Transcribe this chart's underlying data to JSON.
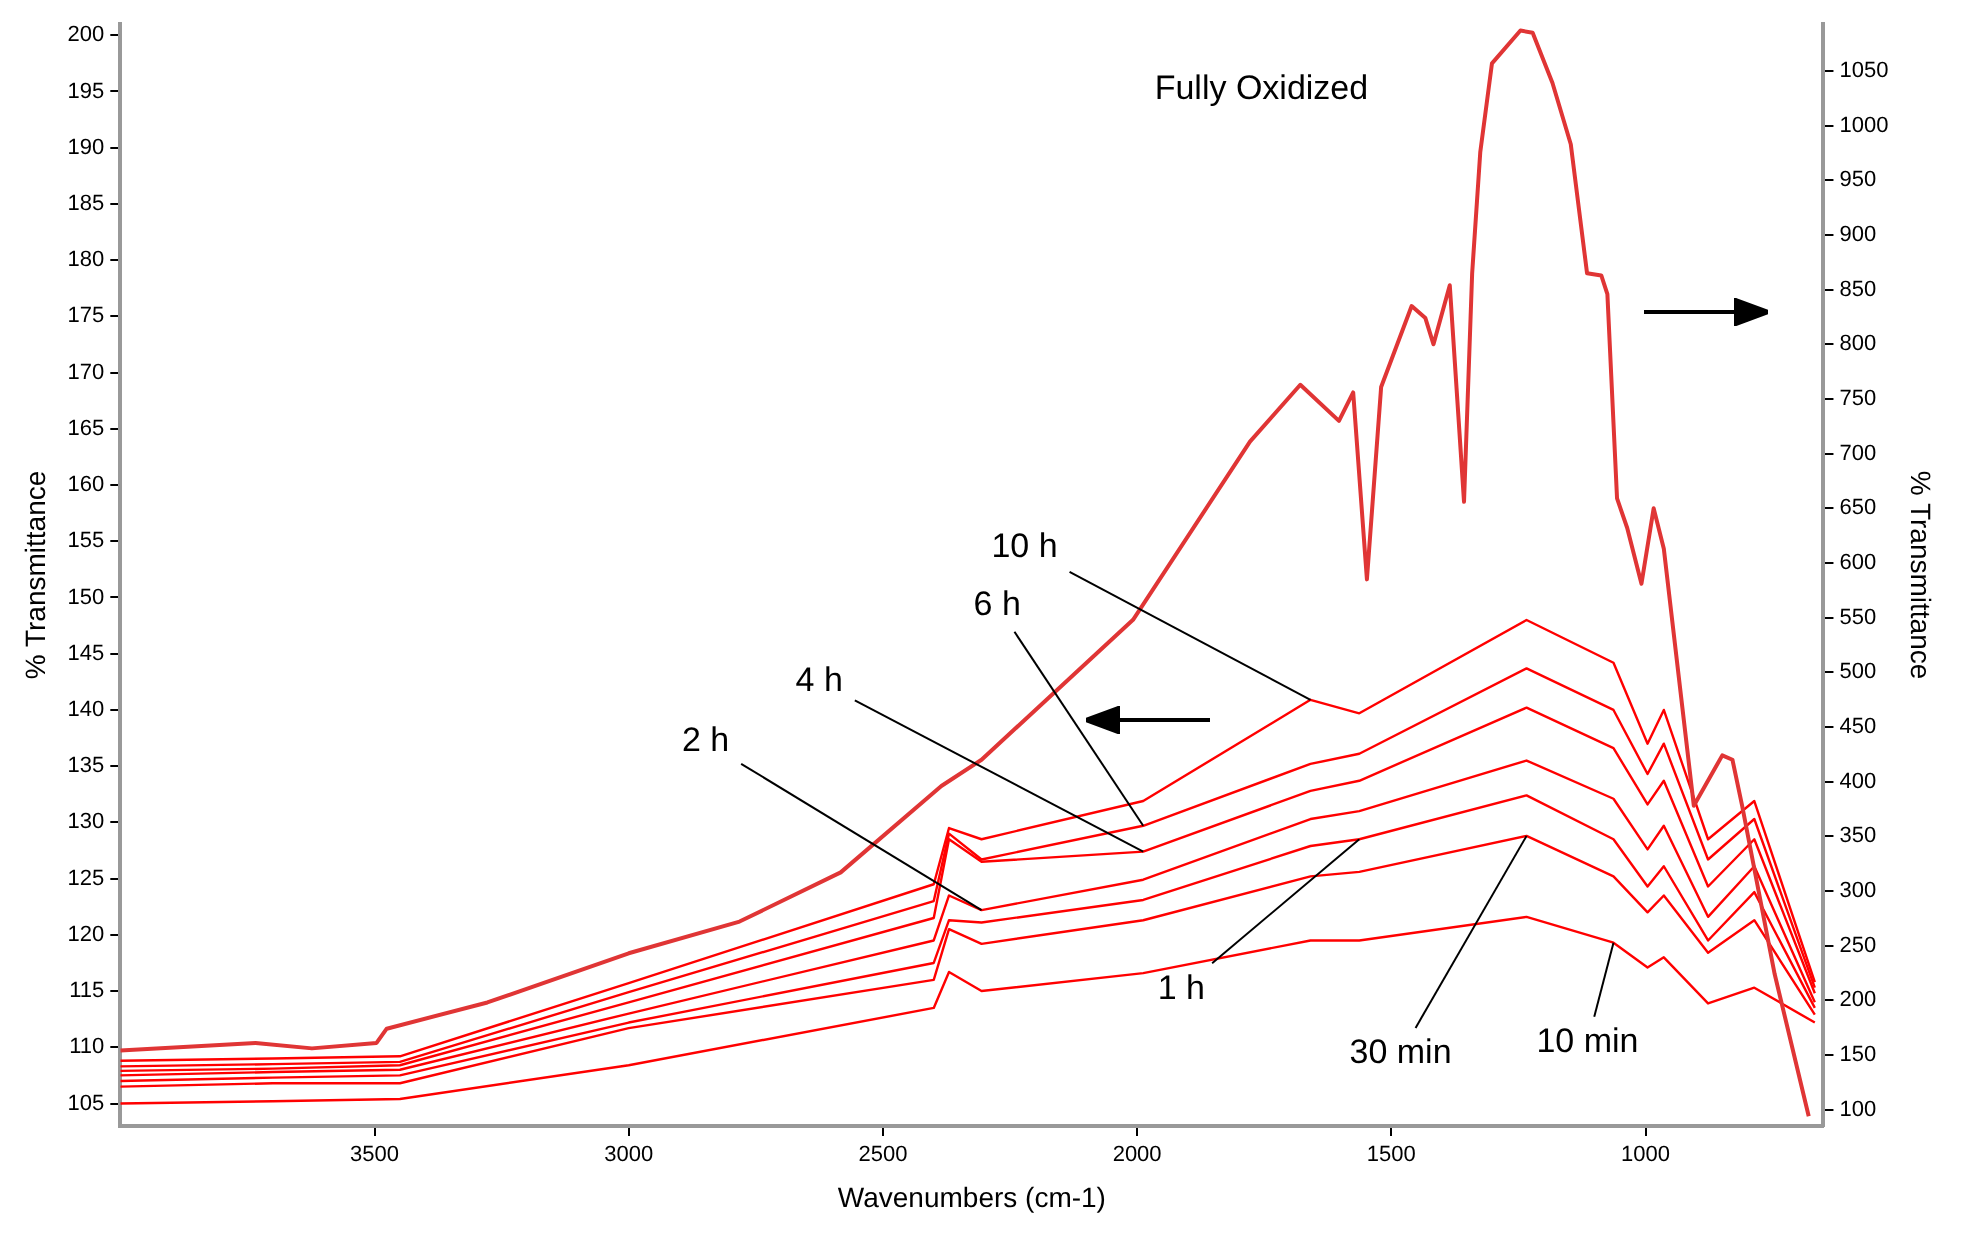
{
  "chart_data": {
    "type": "line",
    "xlabel": "Wavenumbers (cm-1)",
    "ylabel": "% Transmittance",
    "y2label": "% Transmittance",
    "xlim": [
      4000,
      650
    ],
    "xticks": [
      3500,
      3000,
      2500,
      2000,
      1500,
      1000
    ],
    "ylim": [
      103,
      201
    ],
    "yticks": [
      105,
      110,
      115,
      120,
      125,
      130,
      135,
      140,
      145,
      150,
      155,
      160,
      165,
      170,
      175,
      180,
      185,
      190,
      195,
      200
    ],
    "y2lim": [
      85,
      1093
    ],
    "y2ticks": [
      100,
      150,
      200,
      250,
      300,
      350,
      400,
      450,
      500,
      550,
      600,
      650,
      700,
      750,
      800,
      850,
      900,
      950,
      1000,
      1050
    ],
    "annotations": [
      "Fully Oxidized",
      {
        "text": "10 h",
        "x": 1659,
        "y": 140.9
      },
      {
        "text": "6 h",
        "x": 1988,
        "y": 129.7
      },
      {
        "text": "4 h",
        "x": 1988,
        "y": 127.4
      },
      {
        "text": "2 h",
        "x": 2306,
        "y": 122.2
      },
      {
        "text": "1 h",
        "x": 1563,
        "y": 128.5
      },
      {
        "text": "30 min",
        "x": 1234,
        "y": 128.8
      },
      {
        "text": "10 min",
        "x": 1063,
        "y": 119.3
      }
    ],
    "grid": false,
    "legend": false,
    "marker": "none",
    "line_style": "solid",
    "series": [
      {
        "color": "#e03535",
        "axis": "y2",
        "x": [
          4000,
          3734,
          3623,
          3496,
          3476,
          3278,
          3000,
          2782,
          2583,
          2385,
          2306,
          2008,
          1778,
          1679,
          1603,
          1575,
          1548,
          1520,
          1460,
          1433,
          1417,
          1385,
          1357,
          1341,
          1325,
          1302,
          1246,
          1222,
          1183,
          1147,
          1115,
          1087,
          1075,
          1056,
          1036,
          1008,
          984,
          964,
          905,
          849,
          829,
          810,
          746,
          679
        ],
        "values": [
          154,
          161,
          156,
          161,
          174,
          198,
          243,
          272,
          317,
          396,
          420,
          548,
          711,
          763,
          730,
          756,
          585,
          761,
          835,
          824,
          800,
          854,
          656,
          865,
          976,
          1057,
          1087,
          1085,
          1039,
          983,
          865,
          863,
          846,
          659,
          632,
          581,
          650,
          613,
          378,
          424,
          420,
          378,
          224,
          94
        ]
      },
      {
        "color": "#ff0000",
        "x": [
          4000,
          3700,
          3450,
          3000,
          2400,
          2370,
          2306,
          1988,
          1659,
          1563,
          1234,
          1063,
          996,
          964,
          877,
          786,
          667
        ],
        "values": [
          108.8,
          109.0,
          109.2,
          115.7,
          124.5,
          129.5,
          128.5,
          131.9,
          140.9,
          139.7,
          148.0,
          144.2,
          137.0,
          140.0,
          128.5,
          131.9,
          115.8
        ]
      },
      {
        "color": "#ff0000",
        "x": [
          4000,
          3700,
          3450,
          3000,
          2400,
          2370,
          2306,
          1988,
          1659,
          1563,
          1234,
          1063,
          996,
          964,
          877,
          786,
          667
        ],
        "values": [
          108.3,
          108.5,
          108.7,
          114.9,
          123.0,
          129.0,
          126.7,
          129.7,
          135.2,
          136.1,
          143.7,
          140.0,
          134.3,
          137.0,
          126.7,
          130.3,
          115.3
        ]
      },
      {
        "color": "#ff0000",
        "x": [
          4000,
          3700,
          3450,
          3000,
          2400,
          2370,
          2306,
          1988,
          1659,
          1563,
          1234,
          1063,
          996,
          964,
          877,
          786,
          667
        ],
        "values": [
          107.9,
          108.1,
          108.4,
          114.0,
          121.5,
          128.5,
          126.5,
          127.4,
          132.8,
          133.7,
          140.2,
          136.6,
          131.6,
          133.7,
          124.3,
          128.5,
          114.8
        ]
      },
      {
        "color": "#ff0000",
        "x": [
          4000,
          3700,
          3450,
          3000,
          2400,
          2370,
          2306,
          1988,
          1659,
          1563,
          1234,
          1063,
          996,
          964,
          877,
          786,
          667
        ],
        "values": [
          107.5,
          107.8,
          108.0,
          113.0,
          119.5,
          123.5,
          122.2,
          124.9,
          130.3,
          131.0,
          135.5,
          132.1,
          127.6,
          129.7,
          121.6,
          126.1,
          114.0
        ]
      },
      {
        "color": "#ff0000",
        "x": [
          4000,
          3700,
          3450,
          3000,
          2400,
          2370,
          2306,
          1988,
          1659,
          1563,
          1234,
          1063,
          996,
          964,
          877,
          786,
          667
        ],
        "values": [
          107.0,
          107.3,
          107.5,
          112.2,
          117.5,
          121.3,
          121.1,
          123.1,
          127.9,
          128.5,
          132.4,
          128.5,
          124.3,
          126.1,
          119.5,
          123.8,
          113.5
        ]
      },
      {
        "color": "#ff0000",
        "x": [
          4000,
          3700,
          3450,
          3000,
          2400,
          2370,
          2306,
          1988,
          1659,
          1563,
          1234,
          1063,
          996,
          964,
          877,
          786,
          667
        ],
        "values": [
          106.5,
          106.8,
          106.8,
          111.7,
          116.0,
          120.5,
          119.2,
          121.3,
          125.2,
          125.6,
          128.8,
          125.2,
          122.0,
          123.5,
          118.4,
          121.3,
          112.9
        ]
      },
      {
        "color": "#ff0000",
        "x": [
          4000,
          3700,
          3450,
          3000,
          2400,
          2370,
          2306,
          1988,
          1659,
          1563,
          1234,
          1063,
          996,
          964,
          877,
          786,
          667
        ],
        "values": [
          105.0,
          105.2,
          105.4,
          108.4,
          113.5,
          116.7,
          115.0,
          116.6,
          119.5,
          119.5,
          121.6,
          119.3,
          117.1,
          118.0,
          113.9,
          115.3,
          112.2
        ]
      }
    ]
  }
}
